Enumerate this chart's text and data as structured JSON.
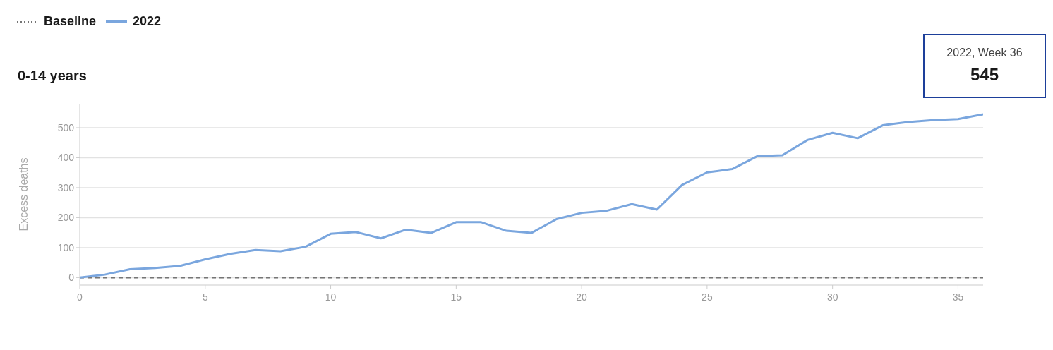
{
  "chart_data": {
    "type": "line",
    "title": "0-14 years",
    "ylabel": "Excess deaths",
    "series": [
      {
        "name": "Baseline",
        "color": "#757575",
        "line_style": "dashed",
        "x": [
          0,
          36
        ],
        "values": [
          0,
          0
        ]
      },
      {
        "name": "2022",
        "color": "#7aa6de",
        "x": [
          0,
          1,
          2,
          3,
          4,
          5,
          6,
          7,
          8,
          9,
          10,
          11,
          12,
          13,
          14,
          15,
          16,
          17,
          18,
          19,
          20,
          21,
          22,
          23,
          24,
          25,
          26,
          27,
          28,
          29,
          30,
          31,
          32,
          33,
          34,
          35,
          36
        ],
        "values": [
          0,
          10,
          28,
          32,
          39,
          61,
          79,
          92,
          88,
          103,
          146,
          152,
          131,
          160,
          149,
          185,
          185,
          156,
          149,
          195,
          216,
          223,
          245,
          227,
          309,
          351,
          362,
          405,
          408,
          459,
          483,
          465,
          508,
          519,
          525,
          529,
          545
        ]
      }
    ],
    "xlim": [
      0,
      36
    ],
    "xticks": [
      0,
      5,
      10,
      15,
      20,
      25,
      30,
      35
    ],
    "ylim": [
      -25,
      580
    ],
    "yticks": [
      0,
      100,
      200,
      300,
      400,
      500
    ],
    "grid": "y",
    "legend": "top left",
    "marker": "none",
    "annotations": [
      "2022, Week 36",
      "545"
    ]
  }
}
